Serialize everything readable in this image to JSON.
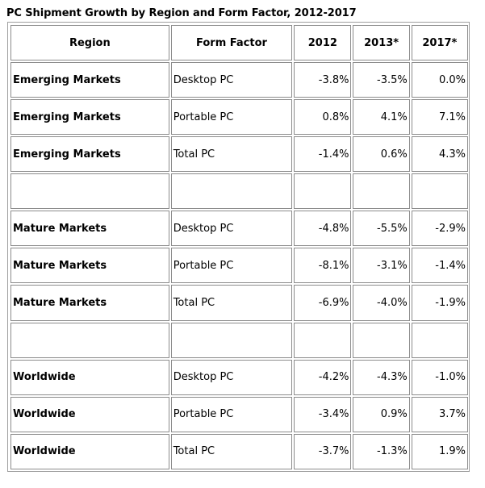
{
  "title": "PC Shipment Growth by Region and Form Factor, 2012-2017",
  "table": {
    "headers": [
      "Region",
      "Form Factor",
      "2012",
      "2013*",
      "2017*"
    ],
    "rows": [
      [
        "Emerging Markets",
        "Desktop PC",
        "-3.8%",
        "-3.5%",
        "0.0%"
      ],
      [
        "Emerging Markets",
        "Portable PC",
        "0.8%",
        "4.1%",
        "7.1%"
      ],
      [
        "Emerging Markets",
        "Total PC",
        "-1.4%",
        "0.6%",
        "4.3%"
      ],
      [
        "",
        "",
        "",
        "",
        ""
      ],
      [
        "Mature Markets",
        "Desktop PC",
        "-4.8%",
        "-5.5%",
        "-2.9%"
      ],
      [
        "Mature Markets",
        "Portable PC",
        "-8.1%",
        "-3.1%",
        "-1.4%"
      ],
      [
        "Mature Markets",
        "Total PC",
        "-6.9%",
        "-4.0%",
        "-1.9%"
      ],
      [
        "",
        "",
        "",
        "",
        ""
      ],
      [
        "Worldwide",
        "Desktop PC",
        "-4.2%",
        "-4.3%",
        "-1.0%"
      ],
      [
        "Worldwide",
        "Portable PC",
        "-3.4%",
        "0.9%",
        "3.7%"
      ],
      [
        "Worldwide",
        "Total PC",
        "-3.7%",
        "-1.3%",
        "1.9%"
      ]
    ]
  }
}
